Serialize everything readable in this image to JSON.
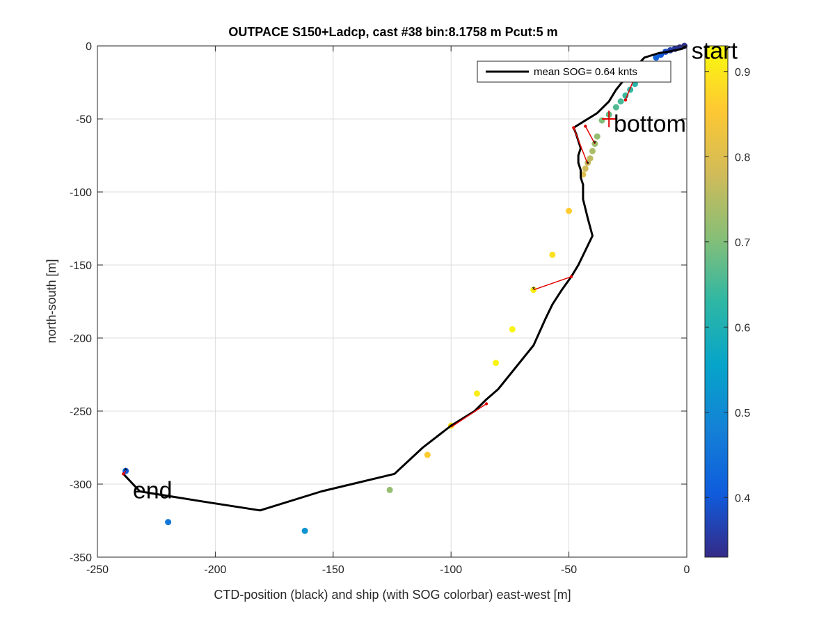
{
  "chart_data": {
    "type": "scatter",
    "title": "OUTPACE S150+Ladcp, cast #38 bin:8.1758 m  Pcut:5 m",
    "xlabel": "CTD-position (black) and ship (with SOG colorbar) east-west [m]",
    "ylabel": "north-south [m]",
    "xlim": [
      -250,
      0
    ],
    "ylim": [
      -350,
      0
    ],
    "xticks": [
      "-250",
      "-200",
      "-150",
      "-100",
      "-50",
      "0"
    ],
    "yticks": [
      "0",
      "-50",
      "-100",
      "-150",
      "-200",
      "-250",
      "-300",
      "-350"
    ],
    "grid": true,
    "legend": {
      "label": "mean SOG=  0.64 knts",
      "position": "top-right"
    },
    "colorbar": {
      "range": [
        0.33,
        0.93
      ],
      "ticks": [
        "0.4",
        "0.5",
        "0.6",
        "0.7",
        "0.8",
        "0.9"
      ],
      "colormap": [
        "#352a87",
        "#0f5cdd",
        "#1481d6",
        "#06a4ca",
        "#2eb7a4",
        "#87bf77",
        "#d1bb59",
        "#fec832",
        "#f9fb0e"
      ]
    },
    "series": [
      {
        "name": "mean SOG=  0.64 knts",
        "kind": "ctd-track",
        "color": "#000000",
        "x": [
          0,
          -2,
          -5,
          -8,
          -12,
          -18,
          -22,
          -26,
          -30,
          -33,
          -38,
          -44,
          -48,
          -47,
          -46,
          -45,
          -46,
          -46,
          -45,
          -45,
          -44,
          -44,
          -44,
          -42,
          -40,
          -43,
          -46,
          -49,
          -53,
          -57,
          -60,
          -65,
          -70,
          -75,
          -80,
          -85,
          -90,
          -95,
          -100,
          -112,
          -124,
          -155,
          -181,
          -205,
          -232,
          -239
        ],
        "y": [
          0,
          -2,
          -3,
          -4,
          -5,
          -8,
          -15,
          -22,
          -30,
          -38,
          -46,
          -52,
          -56,
          -60,
          -65,
          -70,
          -75,
          -80,
          -85,
          -90,
          -95,
          -100,
          -105,
          -118,
          -130,
          -140,
          -150,
          -158,
          -167,
          -177,
          -187,
          -205,
          -215,
          -225,
          -235,
          -242,
          -250,
          -255,
          -260,
          -275,
          -293,
          -305,
          -318,
          -312,
          -305,
          -293
        ]
      },
      {
        "name": "ship",
        "kind": "ship-sog",
        "points": [
          {
            "x": -1,
            "y": 0,
            "sog": 0.34
          },
          {
            "x": -3,
            "y": -1,
            "sog": 0.34
          },
          {
            "x": -5,
            "y": -2,
            "sog": 0.35
          },
          {
            "x": -7,
            "y": -3,
            "sog": 0.36
          },
          {
            "x": -9,
            "y": -4,
            "sog": 0.38
          },
          {
            "x": -11,
            "y": -6,
            "sog": 0.4
          },
          {
            "x": -13,
            "y": -8,
            "sog": 0.42
          },
          {
            "x": -22,
            "y": -26,
            "sog": 0.62
          },
          {
            "x": -24,
            "y": -30,
            "sog": 0.63
          },
          {
            "x": -26,
            "y": -34,
            "sog": 0.64
          },
          {
            "x": -28,
            "y": -38,
            "sog": 0.65
          },
          {
            "x": -30,
            "y": -42,
            "sog": 0.66
          },
          {
            "x": -33,
            "y": -47,
            "sog": 0.68
          },
          {
            "x": -36,
            "y": -51,
            "sog": 0.7
          },
          {
            "x": -38,
            "y": -62,
            "sog": 0.72
          },
          {
            "x": -39,
            "y": -67,
            "sog": 0.73
          },
          {
            "x": -40,
            "y": -72,
            "sog": 0.74
          },
          {
            "x": -41,
            "y": -77,
            "sog": 0.76
          },
          {
            "x": -42,
            "y": -80,
            "sog": 0.77
          },
          {
            "x": -43,
            "y": -84,
            "sog": 0.78
          },
          {
            "x": -44,
            "y": -88,
            "sog": 0.8
          },
          {
            "x": -50,
            "y": -113,
            "sog": 0.86
          },
          {
            "x": -57,
            "y": -143,
            "sog": 0.89
          },
          {
            "x": -65,
            "y": -167,
            "sog": 0.91
          },
          {
            "x": -74,
            "y": -194,
            "sog": 0.92
          },
          {
            "x": -81,
            "y": -217,
            "sog": 0.92
          },
          {
            "x": -89,
            "y": -238,
            "sog": 0.91
          },
          {
            "x": -100,
            "y": -260,
            "sog": 0.9
          },
          {
            "x": -110,
            "y": -280,
            "sog": 0.86
          },
          {
            "x": -126,
            "y": -304,
            "sog": 0.72
          },
          {
            "x": -162,
            "y": -332,
            "sog": 0.52
          },
          {
            "x": -220,
            "y": -326,
            "sog": 0.46
          },
          {
            "x": -238,
            "y": -291,
            "sog": 0.4
          }
        ]
      }
    ],
    "connectors": [
      {
        "x1": -26,
        "y1": -37,
        "x2": -23,
        "y2": -25
      },
      {
        "x1": -48,
        "y1": -56,
        "x2": -42,
        "y2": -81
      },
      {
        "x1": -43,
        "y1": -55,
        "x2": -39,
        "y2": -67
      },
      {
        "x1": -49,
        "y1": -158,
        "x2": -65,
        "y2": -167
      },
      {
        "x1": -85,
        "y1": -245,
        "x2": -100,
        "y2": -261
      },
      {
        "x1": -239,
        "y1": -293,
        "x2": -238,
        "y2": -291
      }
    ],
    "annotations": [
      {
        "text": "start",
        "x": 2,
        "y": -3
      },
      {
        "text": "bottom",
        "x": -31,
        "y": -53
      },
      {
        "text": "end",
        "x": -235,
        "y": -304
      }
    ],
    "bottom_marker": {
      "x": -33,
      "y": -50
    }
  }
}
